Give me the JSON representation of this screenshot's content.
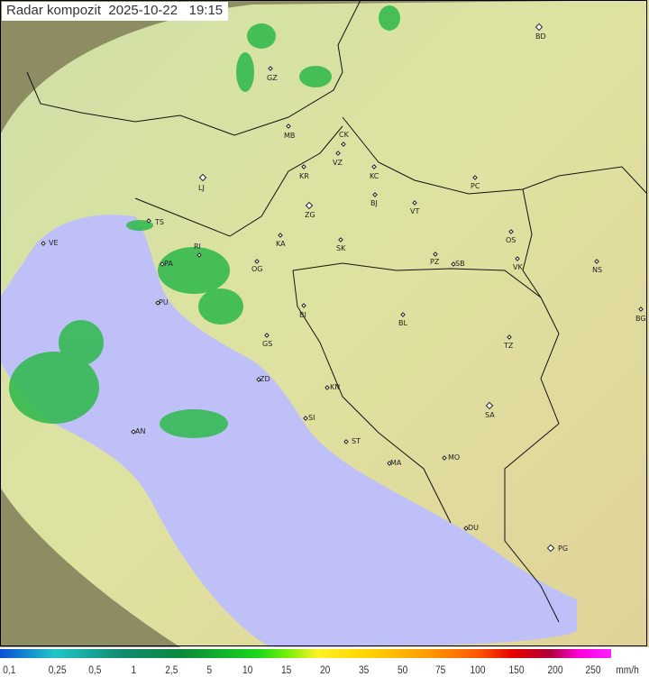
{
  "title": "Radar kompozit  2025-10-22   19:15",
  "colors": {
    "sea": "#c0c0f8",
    "land": "#d6e0a0",
    "outside": "#8c8a60",
    "radar": "#2db84a"
  },
  "cities": [
    {
      "code": "BD",
      "marker": "diamond"
    },
    {
      "code": "GZ",
      "marker": "dot"
    },
    {
      "code": "MB",
      "marker": "dot"
    },
    {
      "code": "CK",
      "marker": "dot"
    },
    {
      "code": "VZ",
      "marker": "dot"
    },
    {
      "code": "KR",
      "marker": "dot"
    },
    {
      "code": "KC",
      "marker": "dot"
    },
    {
      "code": "PC",
      "marker": "dot"
    },
    {
      "code": "LJ",
      "marker": "diamond"
    },
    {
      "code": "BJ",
      "marker": "dot"
    },
    {
      "code": "VT",
      "marker": "dot"
    },
    {
      "code": "TS",
      "marker": "dot"
    },
    {
      "code": "ZG",
      "marker": "diamond"
    },
    {
      "code": "VE",
      "marker": "dot"
    },
    {
      "code": "KA",
      "marker": "dot"
    },
    {
      "code": "SK",
      "marker": "dot"
    },
    {
      "code": "OS",
      "marker": "dot"
    },
    {
      "code": "RI",
      "marker": "dot"
    },
    {
      "code": "PZ",
      "marker": "dot"
    },
    {
      "code": "SB",
      "marker": "dot"
    },
    {
      "code": "VK",
      "marker": "dot"
    },
    {
      "code": "NS",
      "marker": "dot"
    },
    {
      "code": "PA",
      "marker": "dot"
    },
    {
      "code": "OG",
      "marker": "dot"
    },
    {
      "code": "PU",
      "marker": "dot"
    },
    {
      "code": "BI",
      "marker": "dot"
    },
    {
      "code": "BG",
      "marker": "dot"
    },
    {
      "code": "BL",
      "marker": "dot"
    },
    {
      "code": "GS",
      "marker": "dot"
    },
    {
      "code": "TZ",
      "marker": "dot"
    },
    {
      "code": "ZD",
      "marker": "dot"
    },
    {
      "code": "KN",
      "marker": "dot"
    },
    {
      "code": "SA",
      "marker": "diamond"
    },
    {
      "code": "SI",
      "marker": "dot"
    },
    {
      "code": "AN",
      "marker": "dot"
    },
    {
      "code": "ST",
      "marker": "dot"
    },
    {
      "code": "MA",
      "marker": "dot"
    },
    {
      "code": "MO",
      "marker": "dot"
    },
    {
      "code": "DU",
      "marker": "dot"
    },
    {
      "code": "PG",
      "marker": "diamond"
    }
  ],
  "legend": {
    "labels": [
      "0,1",
      "0,25",
      "0,5",
      "1",
      "2,5",
      "5",
      "10",
      "15",
      "20",
      "35",
      "50",
      "75",
      "100",
      "150",
      "200",
      "250"
    ],
    "unit": "mm/h"
  }
}
